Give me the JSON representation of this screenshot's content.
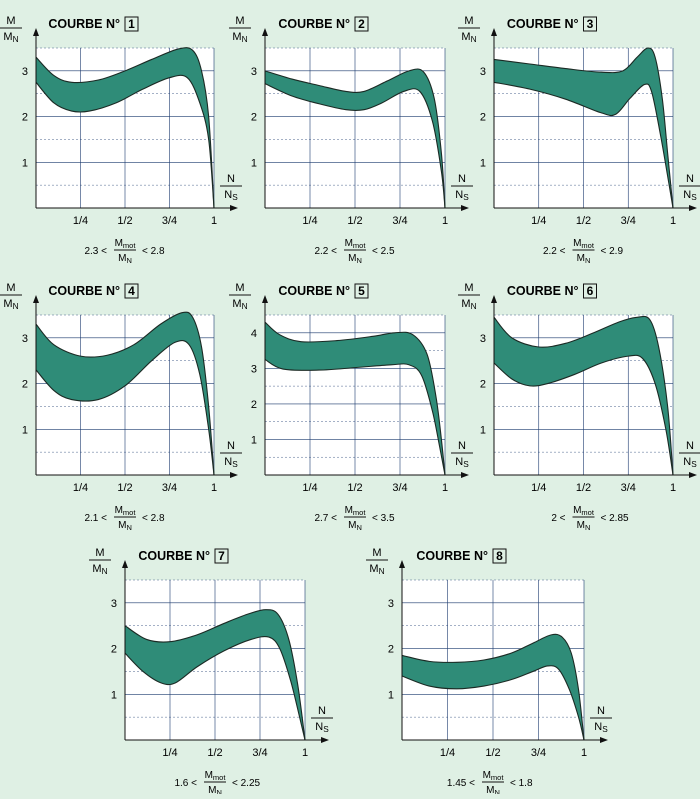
{
  "palette": {
    "background": "#dff0e4",
    "band_fill": "#2f8c78",
    "band_stroke": "#1b2a24",
    "grid": "#1b3a6e",
    "plot_bg": "#ffffff"
  },
  "labels": {
    "title_prefix": "COURBE N°",
    "y_num": "M",
    "y_den": "M",
    "y_den_sub": "N",
    "x_num": "N",
    "x_den": "N",
    "x_den_sub": "S",
    "ratio_num": "M",
    "ratio_num_sub": "mot",
    "ratio_den": "M",
    "ratio_den_sub": "N",
    "lt": "<"
  },
  "chart_data": [
    {
      "type": "area",
      "number": "1",
      "x_ticks": [
        "1/4",
        "1/2",
        "3/4",
        "1"
      ],
      "y_ticks": [
        "1",
        "2",
        "3"
      ],
      "xlim": [
        0,
        1
      ],
      "ylim": [
        0,
        3.5
      ],
      "range": {
        "low": "2.3",
        "high": "2.8"
      },
      "upper": [
        [
          0,
          3.3
        ],
        [
          0.1,
          2.9
        ],
        [
          0.2,
          2.75
        ],
        [
          0.35,
          2.8
        ],
        [
          0.5,
          3.0
        ],
        [
          0.65,
          3.25
        ],
        [
          0.8,
          3.48
        ],
        [
          0.88,
          3.45
        ],
        [
          0.93,
          3.0
        ],
        [
          0.97,
          2.0
        ],
        [
          1.0,
          0.0
        ]
      ],
      "lower": [
        [
          0,
          2.75
        ],
        [
          0.1,
          2.3
        ],
        [
          0.2,
          2.12
        ],
        [
          0.3,
          2.12
        ],
        [
          0.45,
          2.3
        ],
        [
          0.6,
          2.6
        ],
        [
          0.75,
          2.85
        ],
        [
          0.85,
          2.85
        ],
        [
          0.92,
          2.3
        ],
        [
          0.97,
          1.5
        ],
        [
          1.0,
          0.0
        ]
      ]
    },
    {
      "type": "area",
      "number": "2",
      "x_ticks": [
        "1/4",
        "1/2",
        "3/4",
        "1"
      ],
      "y_ticks": [
        "1",
        "2",
        "3"
      ],
      "xlim": [
        0,
        1
      ],
      "ylim": [
        0,
        3.5
      ],
      "range": {
        "low": "2.2",
        "high": "2.5"
      },
      "upper": [
        [
          0,
          3.0
        ],
        [
          0.15,
          2.82
        ],
        [
          0.3,
          2.68
        ],
        [
          0.45,
          2.55
        ],
        [
          0.55,
          2.55
        ],
        [
          0.68,
          2.78
        ],
        [
          0.8,
          3.0
        ],
        [
          0.88,
          2.98
        ],
        [
          0.94,
          2.4
        ],
        [
          0.98,
          1.2
        ],
        [
          1.0,
          0.0
        ]
      ],
      "lower": [
        [
          0,
          2.72
        ],
        [
          0.15,
          2.45
        ],
        [
          0.3,
          2.28
        ],
        [
          0.45,
          2.15
        ],
        [
          0.55,
          2.15
        ],
        [
          0.65,
          2.3
        ],
        [
          0.77,
          2.55
        ],
        [
          0.86,
          2.55
        ],
        [
          0.93,
          1.9
        ],
        [
          0.98,
          0.8
        ],
        [
          1.0,
          0.0
        ]
      ]
    },
    {
      "type": "area",
      "number": "3",
      "x_ticks": [
        "1/4",
        "1/2",
        "3/4",
        "1"
      ],
      "y_ticks": [
        "1",
        "2",
        "3"
      ],
      "xlim": [
        0,
        1
      ],
      "ylim": [
        0,
        3.5
      ],
      "range": {
        "low": "2.2",
        "high": "2.9"
      },
      "upper": [
        [
          0,
          3.25
        ],
        [
          0.2,
          3.15
        ],
        [
          0.4,
          3.05
        ],
        [
          0.6,
          2.97
        ],
        [
          0.72,
          3.0
        ],
        [
          0.8,
          3.3
        ],
        [
          0.86,
          3.5
        ],
        [
          0.9,
          3.3
        ],
        [
          0.94,
          2.4
        ],
        [
          0.97,
          1.2
        ],
        [
          1.0,
          0.0
        ]
      ],
      "lower": [
        [
          0,
          2.75
        ],
        [
          0.2,
          2.6
        ],
        [
          0.4,
          2.38
        ],
        [
          0.6,
          2.08
        ],
        [
          0.68,
          2.05
        ],
        [
          0.76,
          2.4
        ],
        [
          0.84,
          2.7
        ],
        [
          0.88,
          2.55
        ],
        [
          0.93,
          1.6
        ],
        [
          0.97,
          0.7
        ],
        [
          1.0,
          0.0
        ]
      ]
    },
    {
      "type": "area",
      "number": "4",
      "x_ticks": [
        "1/4",
        "1/2",
        "3/4",
        "1"
      ],
      "y_ticks": [
        "1",
        "2",
        "3"
      ],
      "xlim": [
        0,
        1
      ],
      "ylim": [
        0,
        3.5
      ],
      "range": {
        "low": "2.1",
        "high": "2.8"
      },
      "upper": [
        [
          0,
          3.3
        ],
        [
          0.1,
          2.85
        ],
        [
          0.25,
          2.6
        ],
        [
          0.4,
          2.62
        ],
        [
          0.55,
          2.85
        ],
        [
          0.7,
          3.3
        ],
        [
          0.82,
          3.55
        ],
        [
          0.88,
          3.45
        ],
        [
          0.93,
          2.8
        ],
        [
          0.97,
          1.5
        ],
        [
          1.0,
          0.0
        ]
      ],
      "lower": [
        [
          0,
          2.3
        ],
        [
          0.1,
          1.85
        ],
        [
          0.2,
          1.65
        ],
        [
          0.35,
          1.65
        ],
        [
          0.5,
          1.95
        ],
        [
          0.65,
          2.5
        ],
        [
          0.78,
          2.9
        ],
        [
          0.86,
          2.85
        ],
        [
          0.92,
          2.2
        ],
        [
          0.97,
          1.0
        ],
        [
          1.0,
          0.0
        ]
      ]
    },
    {
      "type": "area",
      "number": "5",
      "x_ticks": [
        "1/4",
        "1/2",
        "3/4",
        "1"
      ],
      "y_ticks": [
        "1",
        "2",
        "3",
        "4"
      ],
      "xlim": [
        0,
        1
      ],
      "ylim": [
        0,
        4.5
      ],
      "range": {
        "low": "2.7",
        "high": "3.5"
      },
      "upper": [
        [
          0,
          4.3
        ],
        [
          0.08,
          3.95
        ],
        [
          0.2,
          3.75
        ],
        [
          0.4,
          3.78
        ],
        [
          0.6,
          3.9
        ],
        [
          0.72,
          4.0
        ],
        [
          0.82,
          3.95
        ],
        [
          0.9,
          3.4
        ],
        [
          0.95,
          2.2
        ],
        [
          0.98,
          1.0
        ],
        [
          1.0,
          0.0
        ]
      ],
      "lower": [
        [
          0,
          3.25
        ],
        [
          0.1,
          2.98
        ],
        [
          0.3,
          2.95
        ],
        [
          0.5,
          3.02
        ],
        [
          0.7,
          3.1
        ],
        [
          0.8,
          3.1
        ],
        [
          0.87,
          2.8
        ],
        [
          0.93,
          1.8
        ],
        [
          0.97,
          0.8
        ],
        [
          1.0,
          0.0
        ]
      ]
    },
    {
      "type": "area",
      "number": "6",
      "x_ticks": [
        "1/4",
        "1/2",
        "3/4",
        "1"
      ],
      "y_ticks": [
        "1",
        "2",
        "3"
      ],
      "xlim": [
        0,
        1
      ],
      "ylim": [
        0,
        3.5
      ],
      "range": {
        "low": "2",
        "high": "2.85"
      },
      "upper": [
        [
          0,
          3.45
        ],
        [
          0.1,
          3.0
        ],
        [
          0.25,
          2.8
        ],
        [
          0.4,
          2.88
        ],
        [
          0.55,
          3.1
        ],
        [
          0.7,
          3.35
        ],
        [
          0.8,
          3.45
        ],
        [
          0.87,
          3.4
        ],
        [
          0.92,
          2.8
        ],
        [
          0.97,
          1.5
        ],
        [
          1.0,
          0.0
        ]
      ],
      "lower": [
        [
          0,
          2.45
        ],
        [
          0.1,
          2.1
        ],
        [
          0.2,
          1.95
        ],
        [
          0.3,
          2.0
        ],
        [
          0.45,
          2.2
        ],
        [
          0.6,
          2.45
        ],
        [
          0.75,
          2.6
        ],
        [
          0.83,
          2.55
        ],
        [
          0.9,
          2.0
        ],
        [
          0.96,
          1.0
        ],
        [
          1.0,
          0.0
        ]
      ]
    },
    {
      "type": "area",
      "number": "7",
      "x_ticks": [
        "1/4",
        "1/2",
        "3/4",
        "1"
      ],
      "y_ticks": [
        "1",
        "2",
        "3"
      ],
      "xlim": [
        0,
        1
      ],
      "ylim": [
        0,
        3.5
      ],
      "range": {
        "low": "1.6",
        "high": "2.25"
      },
      "upper": [
        [
          0,
          2.5
        ],
        [
          0.12,
          2.2
        ],
        [
          0.25,
          2.15
        ],
        [
          0.4,
          2.3
        ],
        [
          0.55,
          2.55
        ],
        [
          0.68,
          2.75
        ],
        [
          0.78,
          2.85
        ],
        [
          0.85,
          2.75
        ],
        [
          0.91,
          2.2
        ],
        [
          0.96,
          1.2
        ],
        [
          1.0,
          0.0
        ]
      ],
      "lower": [
        [
          0,
          1.9
        ],
        [
          0.1,
          1.5
        ],
        [
          0.2,
          1.25
        ],
        [
          0.28,
          1.25
        ],
        [
          0.4,
          1.6
        ],
        [
          0.55,
          1.95
        ],
        [
          0.7,
          2.2
        ],
        [
          0.8,
          2.25
        ],
        [
          0.86,
          2.0
        ],
        [
          0.92,
          1.3
        ],
        [
          0.97,
          0.5
        ],
        [
          1.0,
          0.0
        ]
      ]
    },
    {
      "type": "area",
      "number": "8",
      "x_ticks": [
        "1/4",
        "1/2",
        "3/4",
        "1"
      ],
      "y_ticks": [
        "1",
        "2",
        "3"
      ],
      "xlim": [
        0,
        1
      ],
      "ylim": [
        0,
        3.5
      ],
      "range": {
        "low": "1.45",
        "high": "1.8"
      },
      "upper": [
        [
          0,
          1.85
        ],
        [
          0.15,
          1.72
        ],
        [
          0.3,
          1.7
        ],
        [
          0.45,
          1.75
        ],
        [
          0.6,
          1.9
        ],
        [
          0.72,
          2.12
        ],
        [
          0.82,
          2.3
        ],
        [
          0.88,
          2.25
        ],
        [
          0.93,
          1.9
        ],
        [
          0.97,
          1.1
        ],
        [
          1.0,
          0.0
        ]
      ],
      "lower": [
        [
          0,
          1.4
        ],
        [
          0.15,
          1.18
        ],
        [
          0.3,
          1.12
        ],
        [
          0.45,
          1.18
        ],
        [
          0.6,
          1.32
        ],
        [
          0.72,
          1.5
        ],
        [
          0.8,
          1.62
        ],
        [
          0.86,
          1.55
        ],
        [
          0.92,
          1.1
        ],
        [
          0.97,
          0.5
        ],
        [
          1.0,
          0.0
        ]
      ]
    }
  ]
}
